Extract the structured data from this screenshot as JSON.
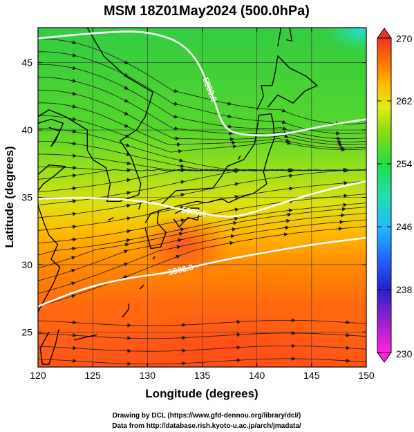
{
  "title": "MSM 18Z01May2024 (500.0hPa)",
  "xlabel": "Longitude (degrees)",
  "ylabel": "Latitude  (degrees)",
  "x_ticks": [
    "120",
    "125",
    "130",
    "135",
    "140",
    "145",
    "150"
  ],
  "y_ticks": [
    "25",
    "30",
    "35",
    "40",
    "45"
  ],
  "colorbar": {
    "labels": [
      "270",
      "262",
      "254",
      "246",
      "238",
      "230"
    ],
    "min": 230,
    "max": 270,
    "colors": [
      "#ff22dd",
      "#3322cc",
      "#2266ff",
      "#22ccee",
      "#22dd66",
      "#55dd22",
      "#ccee11",
      "#ffcc00",
      "#ff8800",
      "#ff4422",
      "#dd3322"
    ]
  },
  "contour_labels": [
    "5800.0",
    "5600.0",
    "5900.0"
  ],
  "credits": [
    "Drawing by DCL (https://www.gfd-dennou.org/library/dcl/)",
    "Data from http://database.rish.kyoto-u.ac.jp/arch/jmadata/"
  ],
  "chart_data": {
    "type": "heatmap",
    "title": "MSM 18Z01May2024 (500.0hPa)",
    "xlabel": "Longitude (degrees)",
    "ylabel": "Latitude  (degrees)",
    "xlim": [
      120,
      150
    ],
    "ylim": [
      22.4,
      47.6
    ],
    "color_range": [
      230,
      270
    ],
    "contours": [
      {
        "label": "5800.0",
        "points": [
          [
            120,
            46.8
          ],
          [
            125,
            47.2
          ],
          [
            130,
            47.4
          ],
          [
            134,
            46.2
          ],
          [
            136,
            42.5
          ],
          [
            137,
            40.0
          ],
          [
            139,
            39.6
          ],
          [
            142,
            39.6
          ],
          [
            146,
            40.3
          ],
          [
            150,
            40.8
          ]
        ]
      },
      {
        "label": "5600.0",
        "points": [
          [
            120,
            34.9
          ],
          [
            125,
            35.0
          ],
          [
            130,
            34.7
          ],
          [
            133,
            34.1
          ],
          [
            137,
            33.5
          ],
          [
            139,
            33.7
          ],
          [
            142,
            34.5
          ],
          [
            146,
            35.5
          ],
          [
            150,
            36.2
          ]
        ]
      },
      {
        "label": "5900.0",
        "points": [
          [
            120,
            26.9
          ],
          [
            124,
            28.2
          ],
          [
            128,
            29.0
          ],
          [
            132,
            29.4
          ],
          [
            136,
            30.2
          ],
          [
            140,
            30.8
          ],
          [
            145,
            31.5
          ],
          [
            150,
            32.0
          ]
        ]
      }
    ],
    "temperature_field_samples": [
      {
        "lon": 120,
        "lat": 47,
        "value": 258
      },
      {
        "lon": 135,
        "lat": 47,
        "value": 257
      },
      {
        "lon": 149,
        "lat": 47,
        "value": 248
      },
      {
        "lon": 120,
        "lat": 40,
        "value": 257
      },
      {
        "lon": 135,
        "lat": 40,
        "value": 256
      },
      {
        "lon": 148,
        "lat": 40,
        "value": 259
      },
      {
        "lon": 120,
        "lat": 35,
        "value": 262
      },
      {
        "lon": 135,
        "lat": 35,
        "value": 260
      },
      {
        "lon": 148,
        "lat": 35,
        "value": 261
      },
      {
        "lon": 120,
        "lat": 30,
        "value": 264
      },
      {
        "lon": 134,
        "lat": 32,
        "value": 268
      },
      {
        "lon": 148,
        "lat": 30,
        "value": 265
      },
      {
        "lon": 120,
        "lat": 24,
        "value": 265
      },
      {
        "lon": 135,
        "lat": 24,
        "value": 268
      },
      {
        "lon": 148,
        "lat": 24,
        "value": 267
      }
    ]
  }
}
